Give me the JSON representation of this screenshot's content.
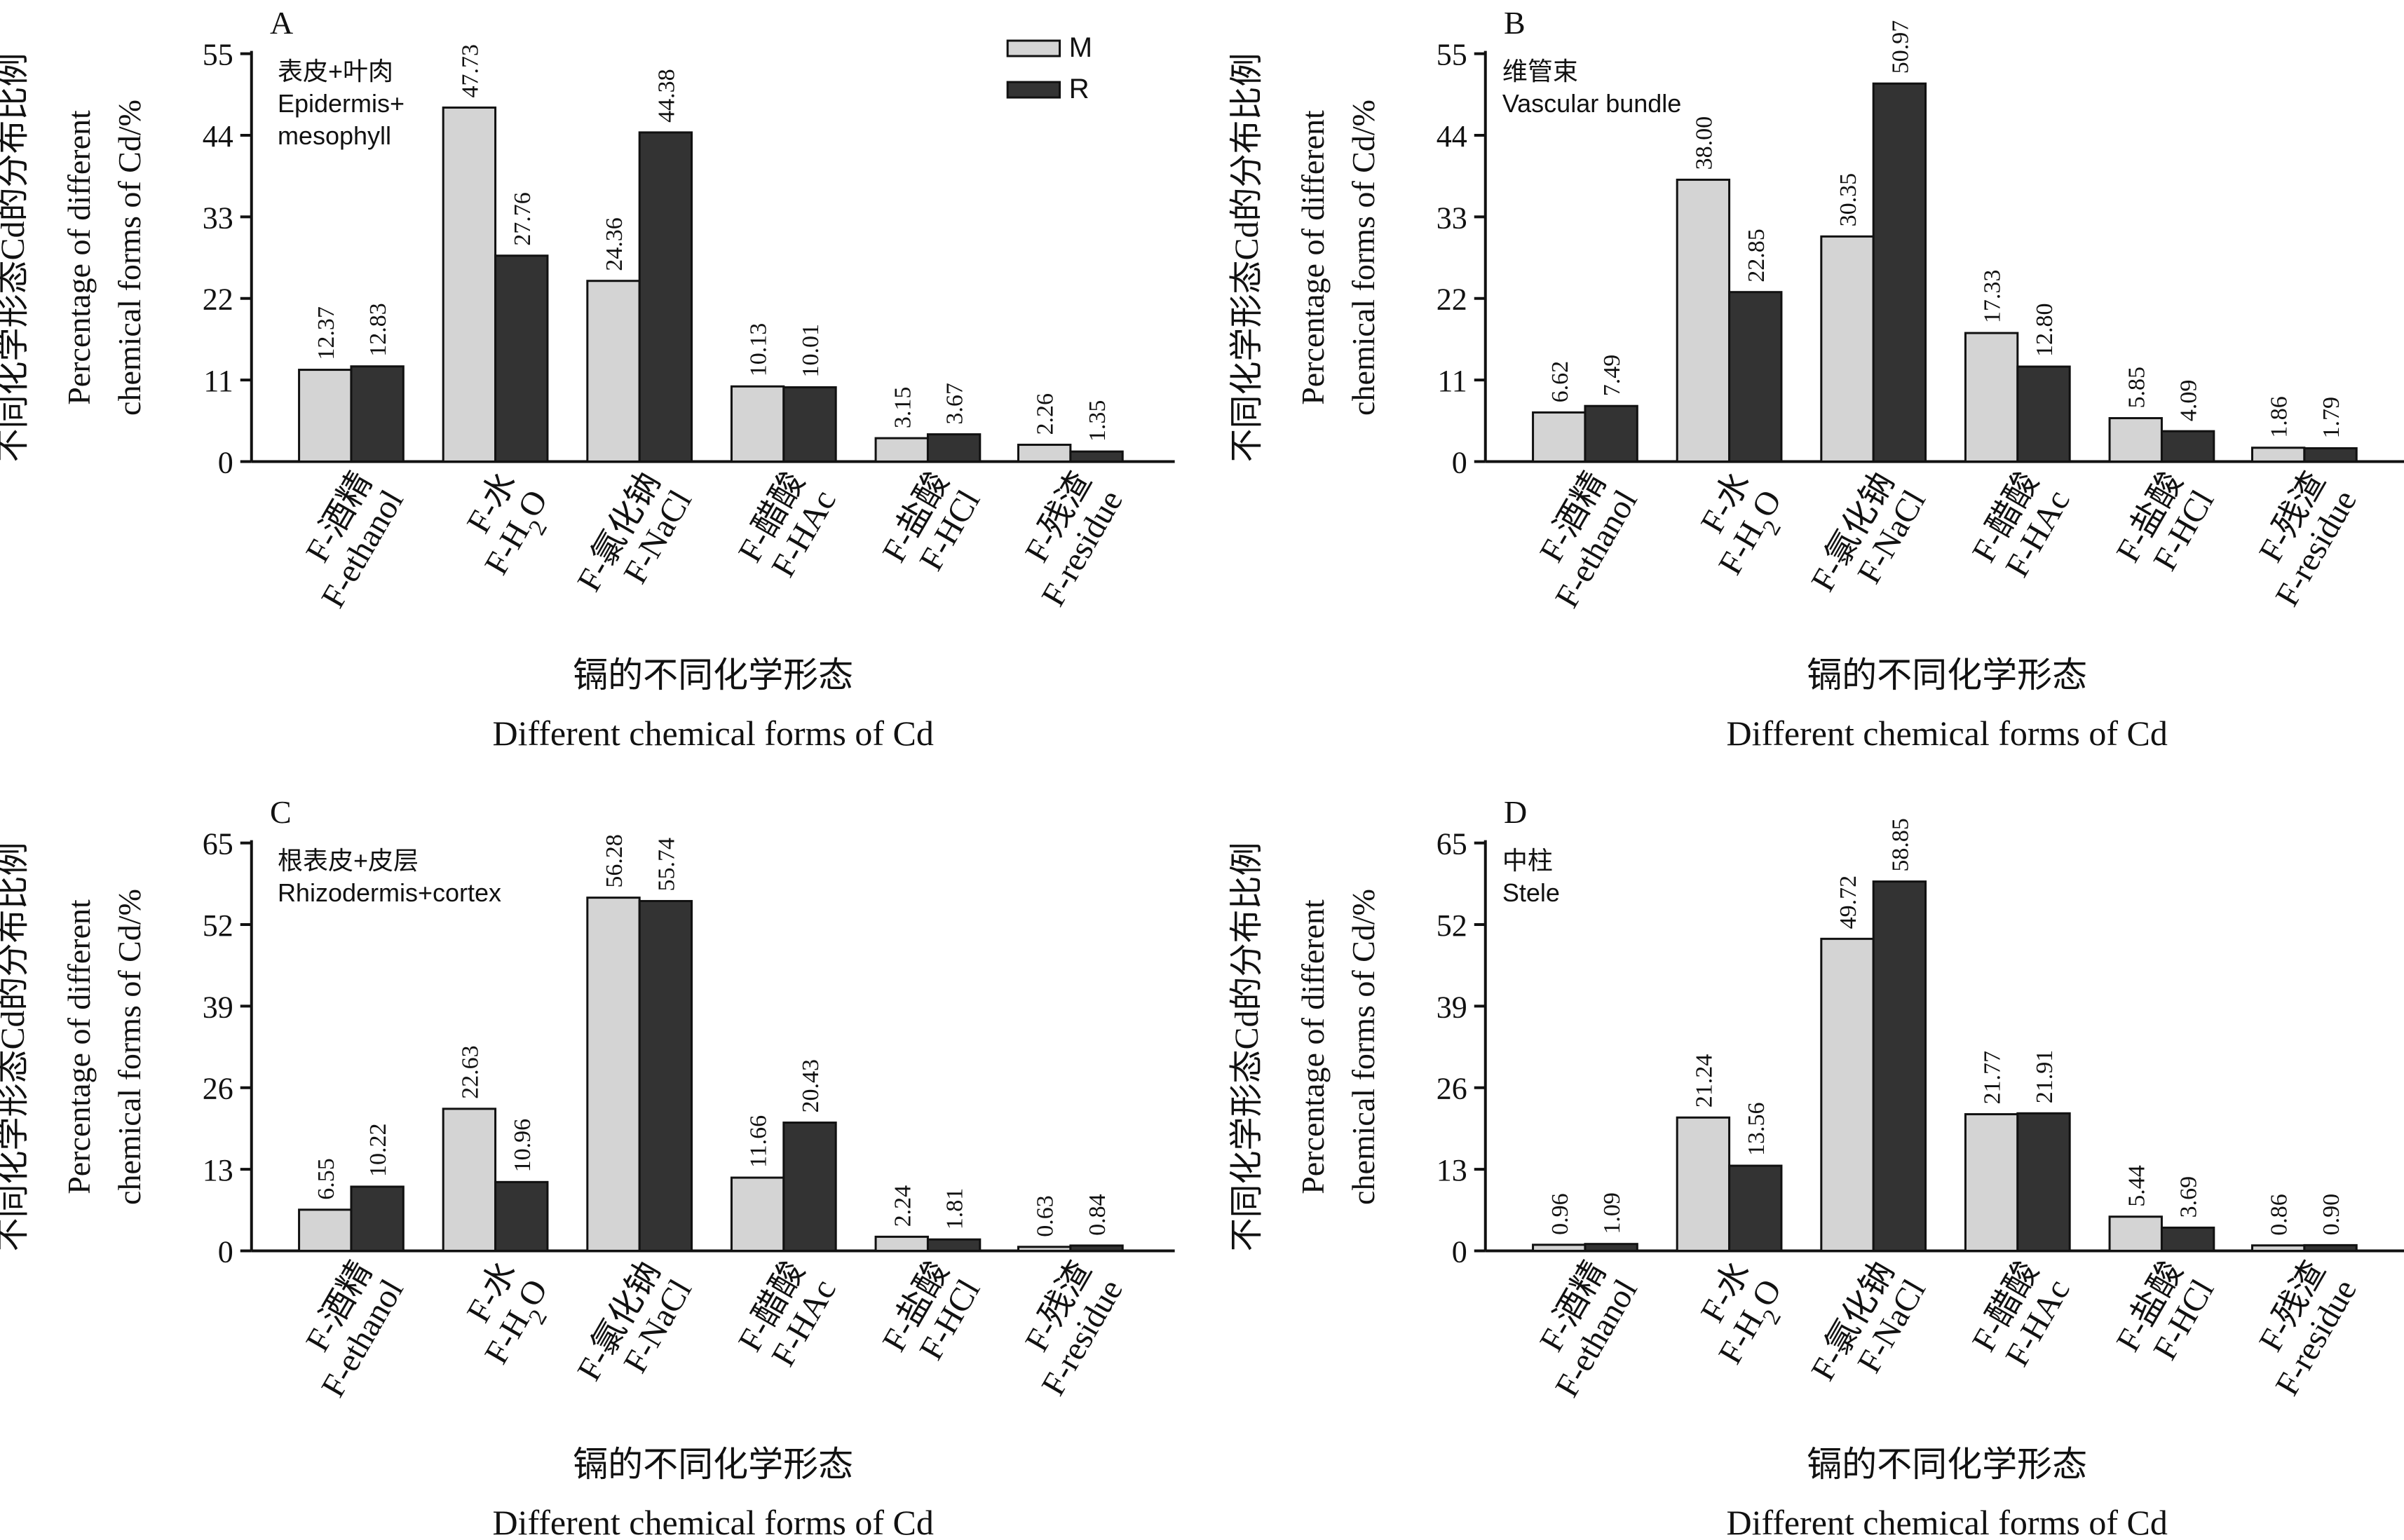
{
  "figure": {
    "y_label_zh": "不同化学形态Cd的分布比例",
    "y_label_en_line1": "Percentage of different",
    "y_label_en_line2": "chemical forms of Cd/%",
    "x_label_zh": "镉的不同化学形态",
    "x_label_en": "Different chemical forms of Cd",
    "legend": [
      {
        "name": "M",
        "color": "#d4d4d4"
      },
      {
        "name": "R",
        "color": "#333333"
      }
    ]
  },
  "chart_data": [
    {
      "type": "bar",
      "panel_label": "A",
      "tissue_zh": "表皮+叶肉",
      "tissue_en": [
        "Epidermis+",
        "mesophyll"
      ],
      "categories": [
        {
          "zh": "F-酒精",
          "en": "F-ethanol"
        },
        {
          "zh": "F-水",
          "en": "F-H2O"
        },
        {
          "zh": "F-氯化钠",
          "en": "F-NaCl"
        },
        {
          "zh": "F-醋酸",
          "en": "F-HAc"
        },
        {
          "zh": "F-盐酸",
          "en": "F-HCl"
        },
        {
          "zh": "F-残渣",
          "en": "F-residue"
        }
      ],
      "series": [
        {
          "name": "M",
          "values": [
            12.37,
            47.73,
            24.36,
            10.13,
            3.15,
            2.26
          ],
          "labels": [
            "12.37",
            "47.73",
            "24.36",
            "10.13",
            "3.15",
            "2.26"
          ]
        },
        {
          "name": "R",
          "values": [
            12.83,
            27.76,
            44.38,
            10.01,
            3.67,
            1.35
          ],
          "labels": [
            "12.83",
            "27.76",
            "44.38",
            "10.01",
            "3.67",
            "1.35"
          ]
        }
      ],
      "ylim": [
        0,
        55
      ],
      "yticks": [
        "0",
        "11",
        "22",
        "33",
        "44",
        "55"
      ]
    },
    {
      "type": "bar",
      "panel_label": "B",
      "tissue_zh": "维管束",
      "tissue_en": [
        "Vascular bundle"
      ],
      "categories": [
        {
          "zh": "F-酒精",
          "en": "F-ethanol"
        },
        {
          "zh": "F-水",
          "en": "F-H2O"
        },
        {
          "zh": "F-氯化钠",
          "en": "F-NaCl"
        },
        {
          "zh": "F-醋酸",
          "en": "F-HAc"
        },
        {
          "zh": "F-盐酸",
          "en": "F-HCl"
        },
        {
          "zh": "F-残渣",
          "en": "F-residue"
        }
      ],
      "series": [
        {
          "name": "M",
          "values": [
            6.62,
            38.0,
            30.35,
            17.33,
            5.85,
            1.86
          ],
          "labels": [
            "6.62",
            "38.00",
            "30.35",
            "17.33",
            "5.85",
            "1.86"
          ]
        },
        {
          "name": "R",
          "values": [
            7.49,
            22.85,
            50.97,
            12.8,
            4.09,
            1.79
          ],
          "labels": [
            "7.49",
            "22.85",
            "50.97",
            "12.80",
            "4.09",
            "1.79"
          ]
        }
      ],
      "ylim": [
        0,
        55
      ],
      "yticks": [
        "0",
        "11",
        "22",
        "33",
        "44",
        "55"
      ]
    },
    {
      "type": "bar",
      "panel_label": "C",
      "tissue_zh": "根表皮+皮层",
      "tissue_en": [
        "Rhizodermis+cortex"
      ],
      "categories": [
        {
          "zh": "F-酒精",
          "en": "F-ethanol"
        },
        {
          "zh": "F-水",
          "en": "F-H2O"
        },
        {
          "zh": "F-氯化钠",
          "en": "F-NaCl"
        },
        {
          "zh": "F-醋酸",
          "en": "F-HAc"
        },
        {
          "zh": "F-盐酸",
          "en": "F-HCl"
        },
        {
          "zh": "F-残渣",
          "en": "F-residue"
        }
      ],
      "series": [
        {
          "name": "M",
          "values": [
            6.55,
            22.63,
            56.28,
            11.66,
            2.24,
            0.63
          ],
          "labels": [
            "6.55",
            "22.63",
            "56.28",
            "11.66",
            "2.24",
            "0.63"
          ]
        },
        {
          "name": "R",
          "values": [
            10.22,
            10.96,
            55.74,
            20.43,
            1.81,
            0.84
          ],
          "labels": [
            "10.22",
            "10.96",
            "55.74",
            "20.43",
            "1.81",
            "0.84"
          ]
        }
      ],
      "ylim": [
        0,
        65
      ],
      "yticks": [
        "0",
        "13",
        "26",
        "39",
        "52",
        "65"
      ]
    },
    {
      "type": "bar",
      "panel_label": "D",
      "tissue_zh": "中柱",
      "tissue_en": [
        "Stele"
      ],
      "categories": [
        {
          "zh": "F-酒精",
          "en": "F-ethanol"
        },
        {
          "zh": "F-水",
          "en": "F-H2O"
        },
        {
          "zh": "F-氯化钠",
          "en": "F-NaCl"
        },
        {
          "zh": "F-醋酸",
          "en": "F-HAc"
        },
        {
          "zh": "F-盐酸",
          "en": "F-HCl"
        },
        {
          "zh": "F-残渣",
          "en": "F-residue"
        }
      ],
      "series": [
        {
          "name": "M",
          "values": [
            0.96,
            21.24,
            49.72,
            21.77,
            5.44,
            0.86
          ],
          "labels": [
            "0.96",
            "21.24",
            "49.72",
            "21.77",
            "5.44",
            "0.86"
          ]
        },
        {
          "name": "R",
          "values": [
            1.09,
            13.56,
            58.85,
            21.91,
            3.69,
            0.9
          ],
          "labels": [
            "1.09",
            "13.56",
            "58.85",
            "21.91",
            "3.69",
            "0.90"
          ]
        }
      ],
      "ylim": [
        0,
        65
      ],
      "yticks": [
        "0",
        "13",
        "26",
        "39",
        "52",
        "65"
      ]
    }
  ]
}
